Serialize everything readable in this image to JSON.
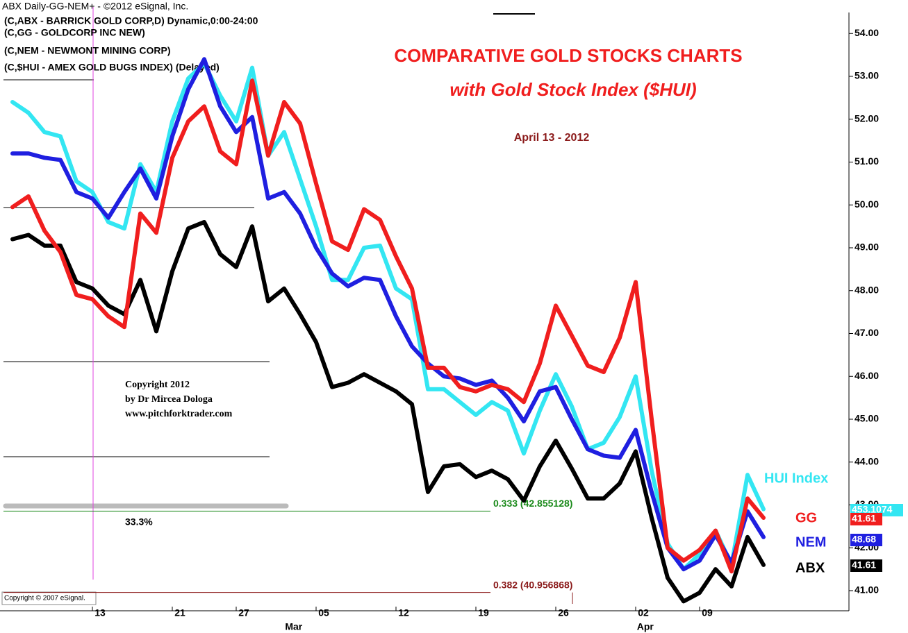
{
  "chart_data": {
    "type": "line",
    "header": [
      "ABX Daily-GG-NEM+ - ©2012 eSignal, Inc.",
      "(C,ABX - BARRICK GOLD CORP,D) Dynamic,0:00-24:00",
      "(C,GG - GOLDCORP INC NEW)",
      "(C,NEM - NEWMONT MINING CORP)",
      "(C,$HUI - AMEX GOLD BUGS INDEX) (Delayed)"
    ],
    "title": "COMPARATIVE GOLD STOCKS CHARTS",
    "subtitle": "with Gold Stock Index ($HUI)",
    "date_note": "April 13 - 2012",
    "copyright": [
      "Copyright 2012",
      "by Dr Mircea Dologa",
      "www.pitchforktrader.com"
    ],
    "footer": "Copyright © 2007 eSignal.",
    "retracement_note": "33.3%",
    "fib_levels": [
      {
        "value": 42.855128,
        "label": "0.333 (42.855128)",
        "color": "#1a8a1a"
      },
      {
        "value": 40.956868,
        "label": "0.382 (40.956868)",
        "color": "#8b1a1a"
      }
    ],
    "categories": [
      null,
      null,
      null,
      null,
      null,
      "13",
      null,
      null,
      null,
      null,
      "21",
      null,
      null,
      null,
      "27",
      null,
      null,
      null,
      null,
      "05",
      null,
      null,
      null,
      null,
      "12",
      null,
      null,
      null,
      null,
      "19",
      null,
      null,
      null,
      null,
      "26",
      null,
      null,
      null,
      null,
      "02",
      null,
      null,
      null,
      "09",
      null,
      null,
      null,
      null
    ],
    "months": [
      "Mar",
      "Apr"
    ],
    "ylim": [
      40.53,
      54.49
    ],
    "yticks": [
      {
        "value": 41,
        "label": "41.00"
      },
      {
        "value": 42,
        "label": "42.00"
      },
      {
        "value": 43,
        "label": "43.00"
      },
      {
        "value": 44,
        "label": "44.00"
      },
      {
        "value": 45,
        "label": "45.00"
      },
      {
        "value": 46,
        "label": "46.00"
      },
      {
        "value": 47,
        "label": "47.00"
      },
      {
        "value": 48,
        "label": "48.00"
      },
      {
        "value": 49,
        "label": "49.00"
      },
      {
        "value": 50,
        "label": "50.00"
      },
      {
        "value": 51,
        "label": "51.00"
      },
      {
        "value": 52,
        "label": "52.00"
      },
      {
        "value": 53,
        "label": "53.00"
      },
      {
        "value": 54,
        "label": "54.00"
      }
    ],
    "series": [
      {
        "name": "ABX",
        "color": "#000000",
        "price_label": "41.61",
        "values": [
          49.2,
          49.3,
          49.05,
          49.05,
          48.2,
          48.05,
          47.65,
          47.45,
          48.25,
          47.05,
          48.45,
          49.45,
          49.6,
          48.85,
          48.55,
          49.5,
          47.75,
          48.05,
          47.45,
          46.8,
          45.75,
          45.85,
          46.05,
          45.85,
          45.65,
          45.35,
          43.3,
          43.9,
          43.95,
          43.65,
          43.8,
          43.6,
          43.1,
          43.9,
          44.5,
          43.85,
          43.15,
          43.15,
          43.5,
          44.25,
          42.7,
          41.3,
          40.75,
          40.95,
          41.5,
          41.1,
          42.25,
          41.6
        ]
      },
      {
        "name": "HUI Index",
        "color": "#33e6f2",
        "price_label": "453.1074",
        "values": [
          52.4,
          52.15,
          51.7,
          51.6,
          50.55,
          50.3,
          49.6,
          49.45,
          50.95,
          50.3,
          51.95,
          52.95,
          53.3,
          52.55,
          51.95,
          53.2,
          51.15,
          51.7,
          50.6,
          49.5,
          48.25,
          48.25,
          49.0,
          49.05,
          48.05,
          47.8,
          45.7,
          45.7,
          45.4,
          45.1,
          45.4,
          45.2,
          44.2,
          45.2,
          46.05,
          45.3,
          44.3,
          44.45,
          45.05,
          46.0,
          43.8,
          42.1,
          41.5,
          41.85,
          42.4,
          41.6,
          43.7,
          42.9
        ]
      },
      {
        "name": "NEM",
        "color": "#1f1fe0",
        "price_label": "48.68",
        "values": [
          51.2,
          51.2,
          51.1,
          51.05,
          50.3,
          50.15,
          49.7,
          50.3,
          50.85,
          50.15,
          51.6,
          52.7,
          53.4,
          52.3,
          51.7,
          52.05,
          50.15,
          50.3,
          49.8,
          49.0,
          48.4,
          48.1,
          48.3,
          48.25,
          47.4,
          46.7,
          46.3,
          46.0,
          45.95,
          45.8,
          45.9,
          45.5,
          44.95,
          45.65,
          45.75,
          45.0,
          44.3,
          44.15,
          44.1,
          44.75,
          43.3,
          42.0,
          41.5,
          41.7,
          42.3,
          41.65,
          42.85,
          42.25
        ]
      },
      {
        "name": "GG",
        "color": "#f01e1e",
        "price_label": "41.61",
        "values": [
          49.95,
          50.2,
          49.4,
          48.9,
          47.9,
          47.8,
          47.4,
          47.15,
          49.8,
          49.35,
          51.1,
          51.95,
          52.3,
          51.25,
          50.95,
          52.9,
          51.15,
          52.4,
          51.9,
          50.5,
          49.15,
          48.95,
          49.9,
          49.65,
          48.8,
          48.05,
          46.2,
          46.2,
          45.75,
          45.65,
          45.8,
          45.7,
          45.4,
          46.3,
          47.65,
          46.95,
          46.25,
          46.1,
          46.9,
          48.2,
          45.0,
          42.0,
          41.7,
          41.95,
          42.4,
          41.45,
          43.15,
          42.7
        ]
      }
    ]
  }
}
